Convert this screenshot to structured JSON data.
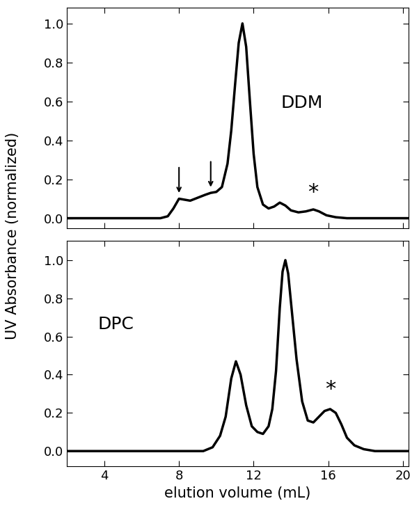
{
  "ylabel": "UV Absorbance (normalized)",
  "chart_data": [
    {
      "type": "line",
      "tick_labels": "y",
      "xlim": [
        2.0,
        20.3
      ],
      "xticks": [
        4,
        8,
        12,
        16,
        20
      ],
      "ylim": [
        -0.05,
        1.08
      ],
      "yticks": [
        {
          "value": 0.0,
          "label": "0.0"
        },
        0.2,
        0.4,
        0.6,
        0.8,
        {
          "value": 1.0,
          "label": "1.0"
        }
      ],
      "series": [
        {
          "color": "#000000",
          "x": [
            2.0,
            7.0,
            7.4,
            7.7,
            8.0,
            8.3,
            8.6,
            9.0,
            9.4,
            9.7,
            10.0,
            10.3,
            10.6,
            10.8,
            11.0,
            11.2,
            11.4,
            11.6,
            11.8,
            12.0,
            12.2,
            12.5,
            12.8,
            13.1,
            13.4,
            13.7,
            14.0,
            14.4,
            14.8,
            15.2,
            15.5,
            15.9,
            16.4,
            17.0,
            20.3
          ],
          "values": [
            0.0,
            0.0,
            0.01,
            0.05,
            0.1,
            0.095,
            0.09,
            0.105,
            0.12,
            0.13,
            0.135,
            0.16,
            0.28,
            0.45,
            0.68,
            0.9,
            1.0,
            0.88,
            0.6,
            0.33,
            0.16,
            0.07,
            0.05,
            0.06,
            0.08,
            0.065,
            0.04,
            0.03,
            0.035,
            0.045,
            0.035,
            0.015,
            0.005,
            0.0,
            0.0
          ]
        }
      ],
      "annotations": [
        {
          "text": "DDM",
          "x": 14.6,
          "y": 0.55
        },
        {
          "text": "*",
          "x": 15.2,
          "y": 0.08
        }
      ],
      "arrows": [
        {
          "x": 8.0,
          "y": 0.12
        },
        {
          "x": 9.7,
          "y": 0.15
        }
      ]
    },
    {
      "type": "line",
      "xlabel": "elution volume (mL)",
      "xlim": [
        2.0,
        20.3
      ],
      "xticks": [
        4,
        8,
        12,
        16,
        20
      ],
      "ylim": [
        -0.08,
        1.1
      ],
      "yticks": [
        {
          "value": 0.0,
          "label": "0.0"
        },
        0.2,
        0.4,
        0.6,
        0.8,
        {
          "value": 1.0,
          "label": "1.0"
        }
      ],
      "series": [
        {
          "color": "#000000",
          "x": [
            2.0,
            9.3,
            9.8,
            10.2,
            10.5,
            10.8,
            11.05,
            11.3,
            11.6,
            11.9,
            12.2,
            12.5,
            12.8,
            13.0,
            13.2,
            13.4,
            13.55,
            13.7,
            13.85,
            14.0,
            14.3,
            14.6,
            14.9,
            15.2,
            15.5,
            15.8,
            16.1,
            16.4,
            16.7,
            17.0,
            17.4,
            17.9,
            18.5,
            20.3
          ],
          "values": [
            0.0,
            0.0,
            0.02,
            0.08,
            0.18,
            0.38,
            0.47,
            0.4,
            0.24,
            0.13,
            0.1,
            0.09,
            0.13,
            0.22,
            0.42,
            0.75,
            0.94,
            1.0,
            0.93,
            0.78,
            0.48,
            0.26,
            0.16,
            0.15,
            0.18,
            0.21,
            0.22,
            0.2,
            0.14,
            0.07,
            0.03,
            0.01,
            0.0,
            0.0
          ]
        }
      ],
      "annotations": [
        {
          "text": "DPC",
          "x": 4.6,
          "y": 0.62
        },
        {
          "text": "*",
          "x": 16.1,
          "y": 0.27
        }
      ]
    }
  ]
}
